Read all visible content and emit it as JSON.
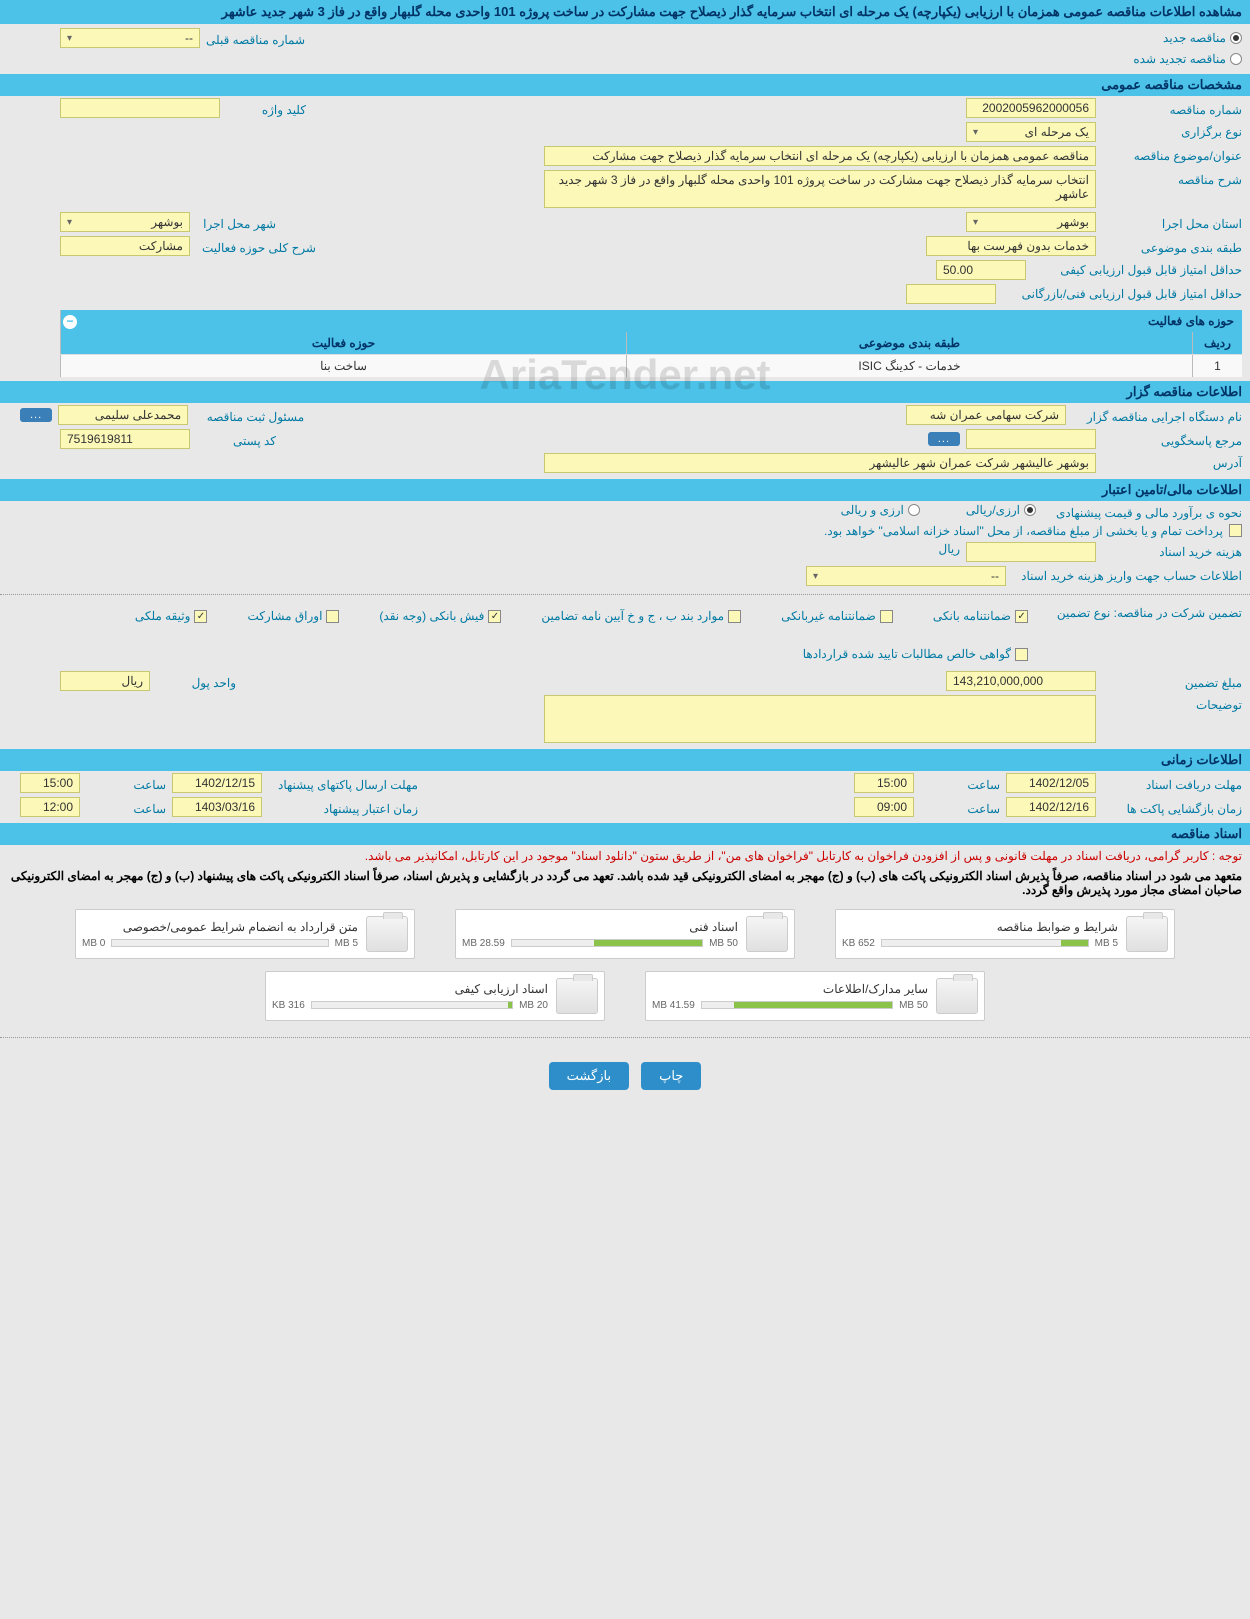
{
  "header": {
    "title": "مشاهده اطلاعات مناقصه عمومی همزمان با ارزیابی (یکپارچه) یک مرحله ای انتخاب سرمایه گذار ذیصلاح جهت مشارکت در ساخت پروژه 101 واحدی محله گلبهار واقع در فاز 3 شهر جدید عاشهر"
  },
  "tender_type": {
    "options": [
      "مناقصه جدید",
      "مناقصه تجدید شده"
    ],
    "selected": 0,
    "prev_number_label": "شماره مناقصه قبلی",
    "prev_number_value": "--"
  },
  "sections": {
    "general": "مشخصات مناقصه عمومی",
    "holder": "اطلاعات مناقصه گزار",
    "financial": "اطلاعات مالی/تامین اعتبار",
    "timing": "اطلاعات زمانی",
    "docs": "اسناد مناقصه"
  },
  "general": {
    "tender_no_label": "شماره مناقصه",
    "tender_no": "2002005962000056",
    "keyword_label": "کلید واژه",
    "keyword": "",
    "holding_type_label": "نوع برگزاری",
    "holding_type": "یک مرحله ای",
    "subject_label": "عنوان/موضوع مناقصه",
    "subject": "مناقصه عمومی همزمان با ارزیابی (یکپارچه) یک مرحله ای انتخاب سرمایه گذار ذیصلاح جهت مشارکت",
    "desc_label": "شرح مناقصه",
    "desc": "انتخاب سرمایه گذار ذیصلاح جهت مشارکت در ساخت پروژه 101 واحدی محله گلبهار واقع در فاز 3 شهر جدید عاشهر",
    "province_label": "استان محل اجرا",
    "province": "بوشهر",
    "city_label": "شهر محل اجرا",
    "city": "بوشهر",
    "topic_class_label": "طبقه بندی موضوعی",
    "topic_class": "خدمات بدون فهرست بها",
    "scope_desc_label": "شرح کلی حوزه فعالیت",
    "scope_desc": "مشارکت",
    "min_qual_score_label": "حداقل امتیاز قابل قبول ارزیابی کیفی",
    "min_qual_score": "50.00",
    "min_tech_score_label": "حداقل امتیاز قابل قبول ارزیابی فنی/بازرگانی",
    "min_tech_score": "",
    "activities_title": "حوزه های فعالیت",
    "table_headers": {
      "idx": "ردیف",
      "topic": "طبقه بندی موضوعی",
      "scope": "حوزه فعالیت"
    },
    "activities": [
      {
        "idx": "1",
        "topic": "خدمات - کدینگ ISIC",
        "scope": "ساخت بنا"
      }
    ]
  },
  "holder": {
    "org_label": "نام دستگاه اجرایی مناقصه گزار",
    "org": "شرکت سهامی عمران شه",
    "resp_label": "مسئول ثبت مناقصه",
    "resp": "محمدعلی سلیمی",
    "contact_label": "مرجع پاسخگویی",
    "contact": "",
    "postal_label": "کد پستی",
    "postal": "7519619811",
    "address_label": "آدرس",
    "address": "بوشهر عالیشهر شرکت عمران شهر عالیشهر",
    "ellipsis": "..."
  },
  "financial": {
    "method_label": "نحوه ی برآورد مالی و قیمت پیشنهادی",
    "method_options": [
      "ارزی/ریالی",
      "ارزی و ریالی"
    ],
    "method_selected": 0,
    "payment_note": "پرداخت تمام و یا بخشی از مبلغ مناقصه، از محل \"اسناد خزانه اسلامی\" خواهد بود.",
    "doc_cost_label": "هزینه خرید اسناد",
    "doc_cost": "",
    "currency": "ریال",
    "account_label": "اطلاعات حساب جهت واریز هزینه خرید اسناد",
    "account": "--",
    "guarantee_label": "تضمین شرکت در مناقصه:   نوع تضمین",
    "guarantee_types": [
      {
        "label": "ضمانتنامه بانکی",
        "checked": true
      },
      {
        "label": "ضمانتنامه غیربانکی",
        "checked": false
      },
      {
        "label": "موارد بند ب ، ج و خ آیین نامه تضامین",
        "checked": false
      },
      {
        "label": "فیش بانکی (وجه نقد)",
        "checked": true
      },
      {
        "label": "اوراق مشارکت",
        "checked": false
      },
      {
        "label": "وثیقه ملکی",
        "checked": true
      },
      {
        "label": "گواهی خالص مطالبات تایید شده قراردادها",
        "checked": false
      }
    ],
    "guarantee_amount_label": "مبلغ تضمین",
    "guarantee_amount": "143,210,000,000",
    "amount_unit_label": "واحد پول",
    "amount_unit": "ریال",
    "remarks_label": "توضیحات",
    "remarks": ""
  },
  "timing": {
    "receive_docs_label": "مهلت دریافت اسناد",
    "receive_docs_date": "1402/12/05",
    "receive_docs_time": "15:00",
    "submit_label": "مهلت ارسال پاکتهای پیشنهاد",
    "submit_date": "1402/12/15",
    "submit_time": "15:00",
    "open_label": "زمان بازگشایی پاکت ها",
    "open_date": "1402/12/16",
    "open_time": "09:00",
    "validity_label": "زمان اعتبار پیشنهاد",
    "validity_date": "1403/03/16",
    "validity_time": "12:00",
    "time_label": "ساعت"
  },
  "docs": {
    "note_red": "توجه : کاربر گرامی، دریافت اسناد در مهلت قانونی و پس از افزودن فراخوان به کارتابل \"فراخوان های من\"، از طریق ستون \"دانلود اسناد\" موجود در این کارتابل، امکانپذیر می باشد.",
    "note_black": "متعهد می شود در اسناد مناقصه، صرفاً پذیرش اسناد الکترونیکی پاکت های (ب) و (ج) مهجر به امضای الکترونیکی قید شده باشد. تعهد می گردد در بازگشایی و پذیرش اسناد، صرفاً اسناد الکترونیکی پاکت های پیشنهاد (ب) و (ج) مهجر به امضای الکترونیکی صاحبان امضای مجاز مورد پذیرش واقع گردد.",
    "files": [
      {
        "title": "شرایط و ضوابط مناقصه",
        "used": "652 KB",
        "total": "5 MB",
        "pct": 13
      },
      {
        "title": "اسناد فنی",
        "used": "28.59 MB",
        "total": "50 MB",
        "pct": 57
      },
      {
        "title": "متن قرارداد به انضمام شرایط عمومی/خصوصی",
        "used": "0 MB",
        "total": "5 MB",
        "pct": 0
      },
      {
        "title": "سایر مدارک/اطلاعات",
        "used": "41.59 MB",
        "total": "50 MB",
        "pct": 83
      },
      {
        "title": "اسناد ارزیابی کیفی",
        "used": "316 KB",
        "total": "20 MB",
        "pct": 2
      }
    ]
  },
  "actions": {
    "print": "چاپ",
    "back": "بازگشت"
  },
  "watermark": "AriaTender.net"
}
